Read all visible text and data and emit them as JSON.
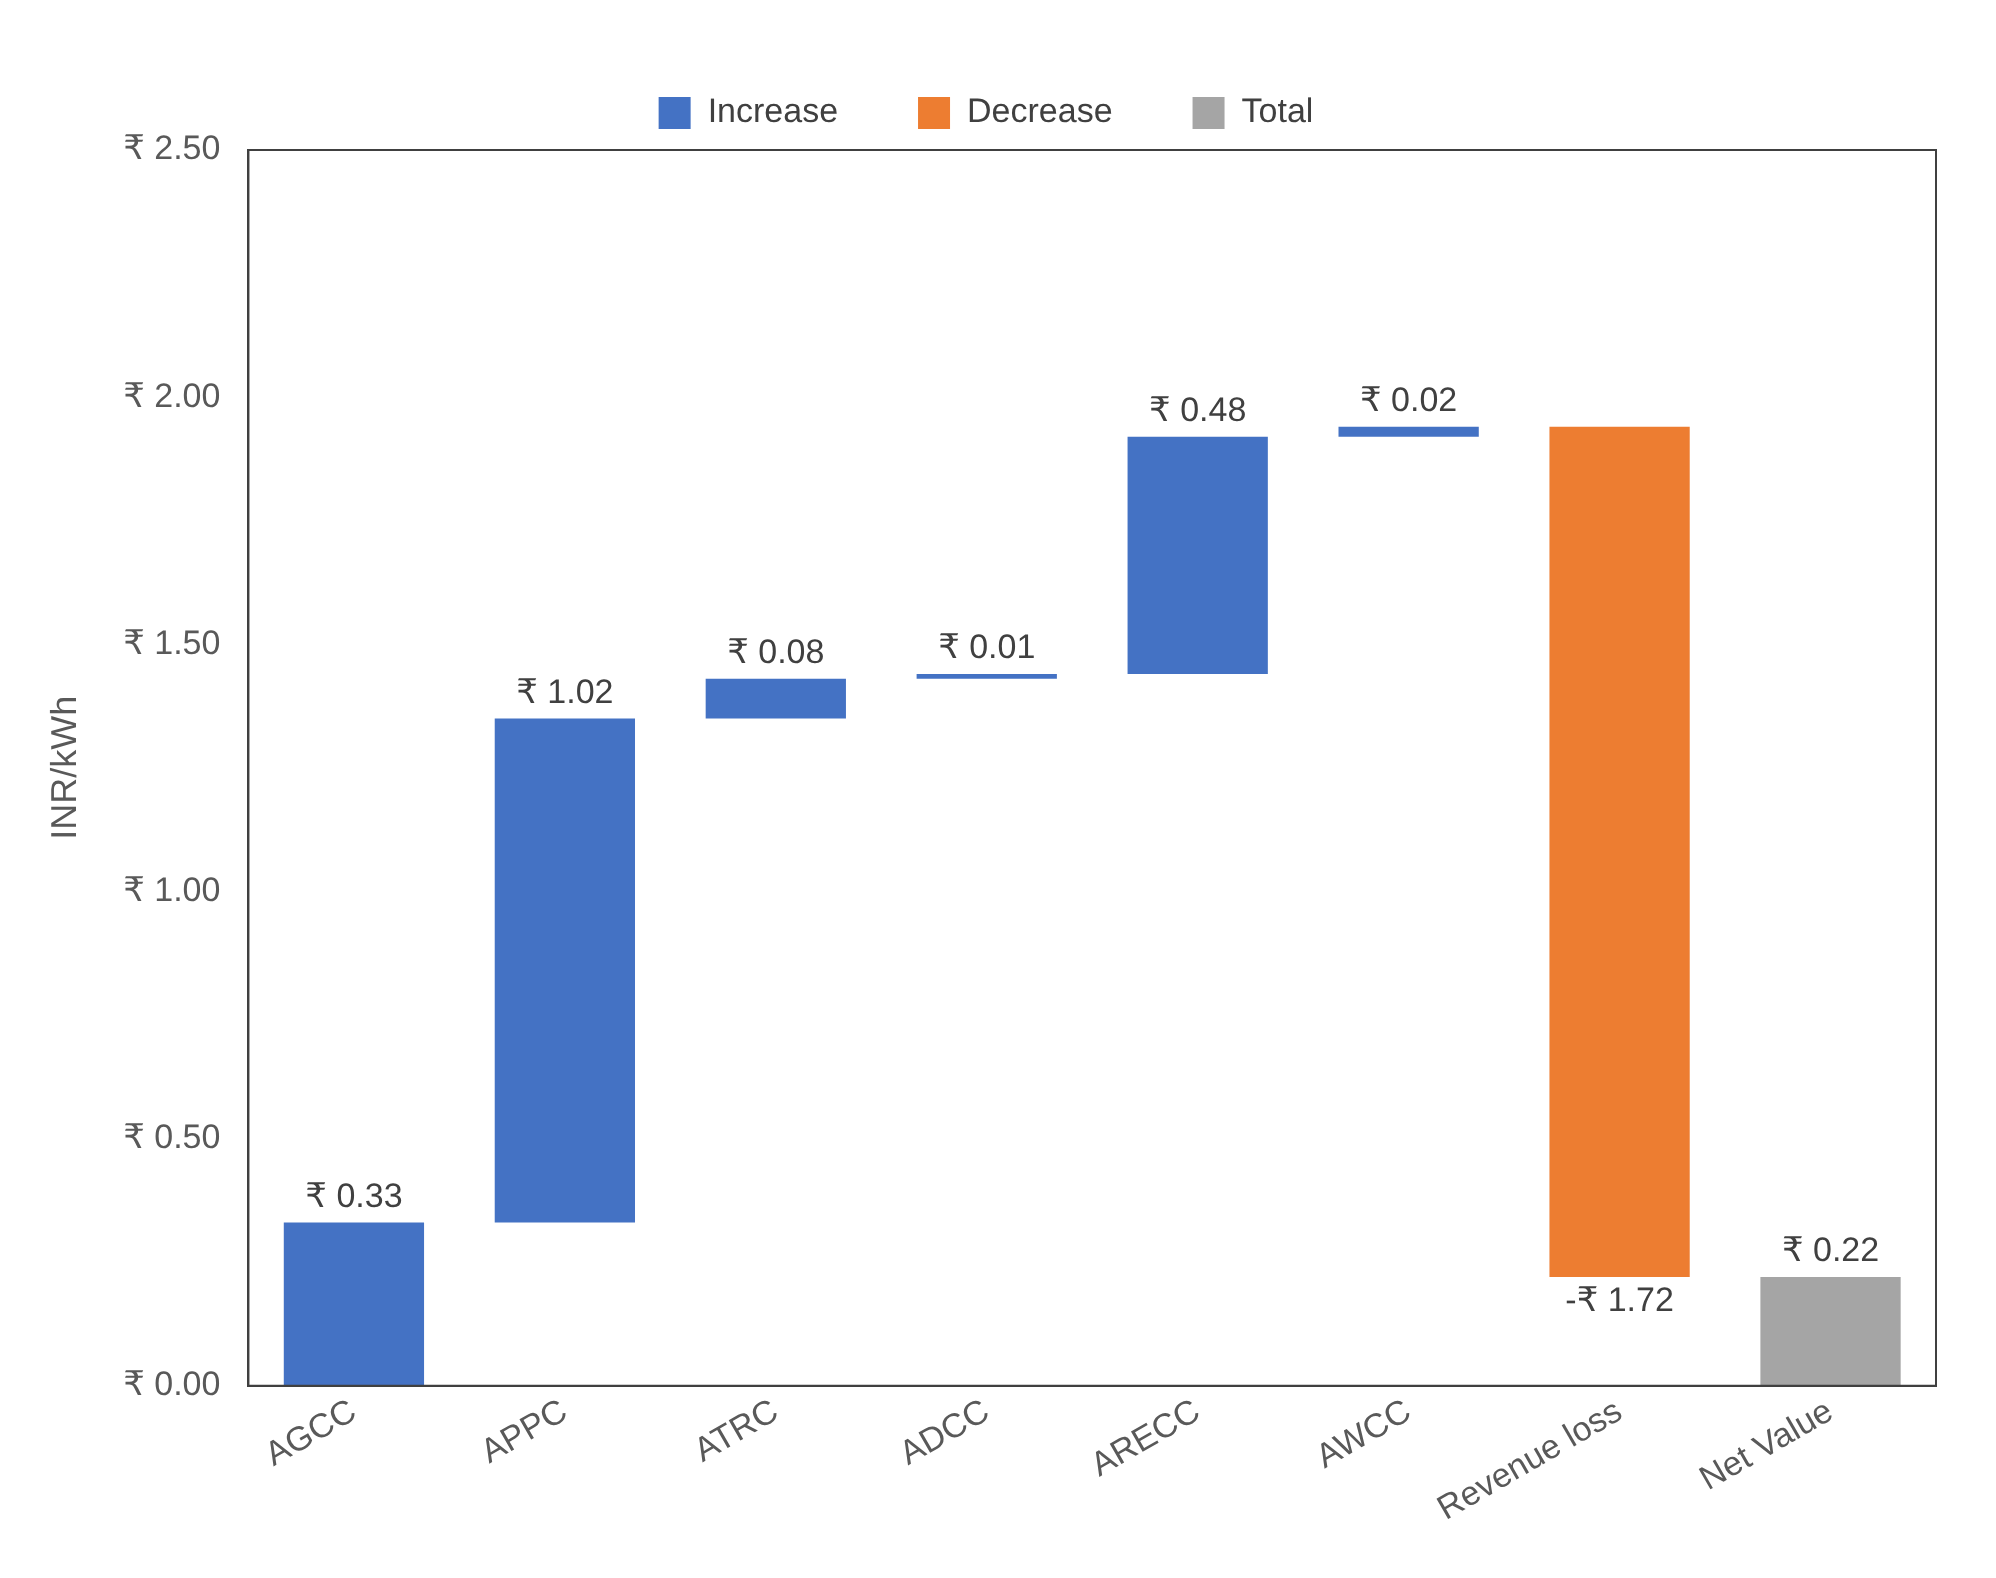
{
  "chart_data": {
    "type": "bar",
    "ylabel": "INR/kWh",
    "categories": [
      "AGCC",
      "APPC",
      "ATRC",
      "ADCC",
      "ARECC",
      "AWCC",
      "Revenue loss",
      "Net Value"
    ],
    "series": [
      {
        "name": "Increase",
        "color": "#4472c4",
        "base": [
          0,
          0.33,
          1.35,
          1.43,
          1.44,
          1.92,
          null,
          null
        ],
        "values": [
          0.33,
          1.02,
          0.08,
          0.01,
          0.48,
          0.02,
          null,
          null
        ],
        "value_labels": [
          "₹ 0.33",
          "₹ 1.02",
          "₹ 0.08",
          "₹ 0.01",
          "₹ 0.48",
          "₹ 0.02",
          null,
          null
        ]
      },
      {
        "name": "Decrease",
        "color": "#ed7d31",
        "base": [
          null,
          null,
          null,
          null,
          null,
          null,
          1.94,
          null
        ],
        "values": [
          null,
          null,
          null,
          null,
          null,
          null,
          -1.72,
          null
        ],
        "value_labels": [
          null,
          null,
          null,
          null,
          null,
          null,
          "-₹ 1.72",
          null
        ]
      },
      {
        "name": "Total",
        "color": "#a5a5a5",
        "base": [
          null,
          null,
          null,
          null,
          null,
          null,
          null,
          0
        ],
        "values": [
          null,
          null,
          null,
          null,
          null,
          null,
          null,
          0.22
        ],
        "value_labels": [
          null,
          null,
          null,
          null,
          null,
          null,
          null,
          "₹ 0.22"
        ]
      }
    ],
    "ylim": [
      0,
      2.5
    ],
    "yticks": [
      {
        "value": 0,
        "label": "₹ 0.00"
      },
      {
        "value": 0.5,
        "label": "₹ 0.50"
      },
      {
        "value": 1,
        "label": "₹ 1.00"
      },
      {
        "value": 1.5,
        "label": "₹ 1.50"
      },
      {
        "value": 2,
        "label": "₹ 2.00"
      },
      {
        "value": 2.5,
        "label": "₹ 2.50"
      }
    ],
    "grid": false,
    "legend": "top"
  }
}
